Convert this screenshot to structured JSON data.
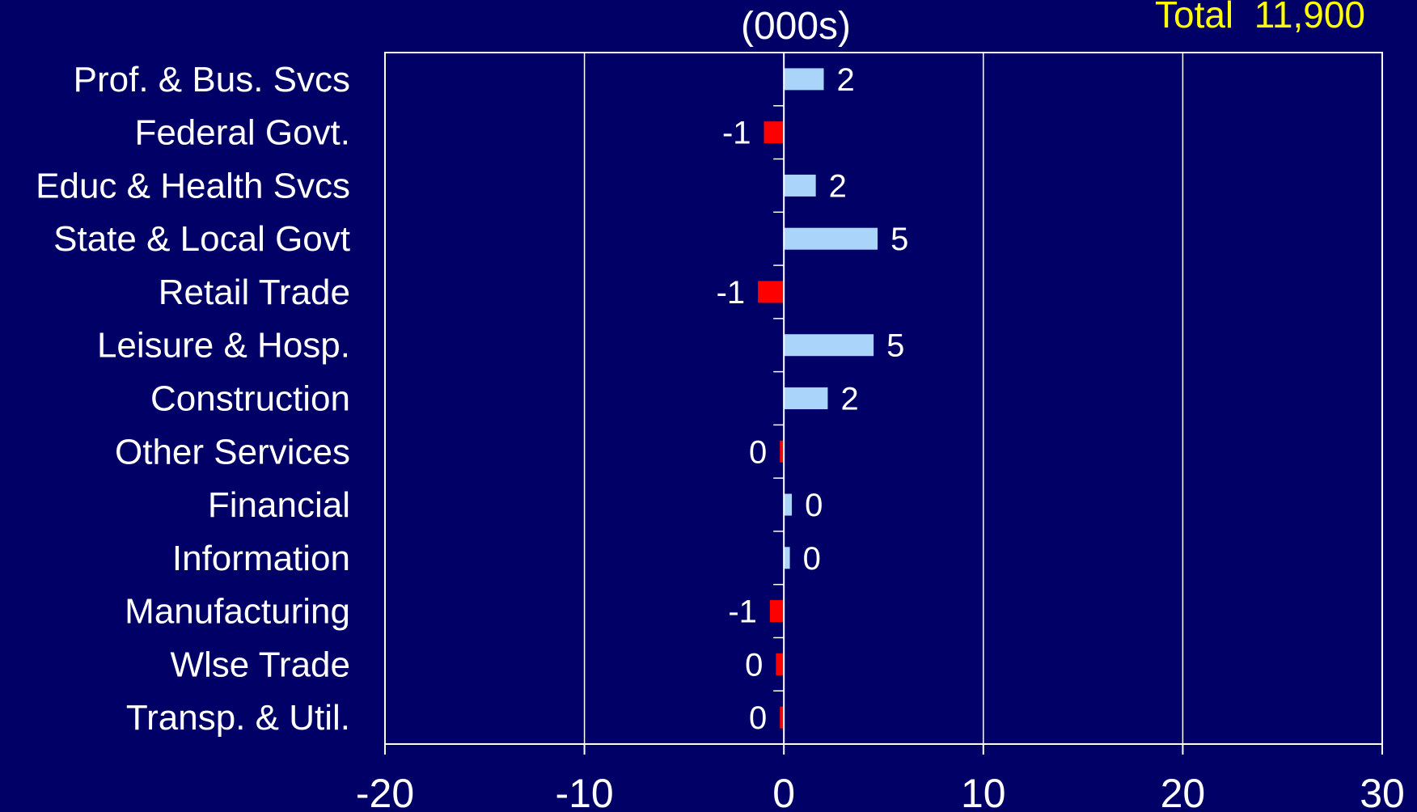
{
  "colors": {
    "background": "#000066",
    "positive_bar": "#aad4fa",
    "negative_bar": "#ff0000",
    "text": "#ffffff",
    "total_text": "#ffff00",
    "grid": "#ffffff"
  },
  "chart_data": {
    "type": "bar",
    "orientation": "horizontal",
    "subtitle": "(000s)",
    "total_label": "Total  11,900",
    "xlim": [
      -20,
      30
    ],
    "xticks": [
      -20,
      -10,
      0,
      10,
      20,
      30
    ],
    "grid": true,
    "categories": [
      "Prof. & Bus. Svcs",
      "Federal Govt.",
      "Educ & Health Svcs",
      "State & Local Govt",
      "Retail Trade",
      "Leisure & Hosp.",
      "Construction",
      "Other Services",
      "Financial",
      "Information",
      "Manufacturing",
      "Wlse Trade",
      "Transp. & Util."
    ],
    "values": [
      2.0,
      -1.0,
      1.6,
      4.7,
      -1.3,
      4.5,
      2.2,
      -0.2,
      0.4,
      0.3,
      -0.7,
      -0.4,
      -0.2
    ],
    "value_labels": [
      "2",
      "-1",
      "2",
      "5",
      "-1",
      "5",
      "2",
      "0",
      "0",
      "0",
      "-1",
      "0",
      "0"
    ]
  }
}
